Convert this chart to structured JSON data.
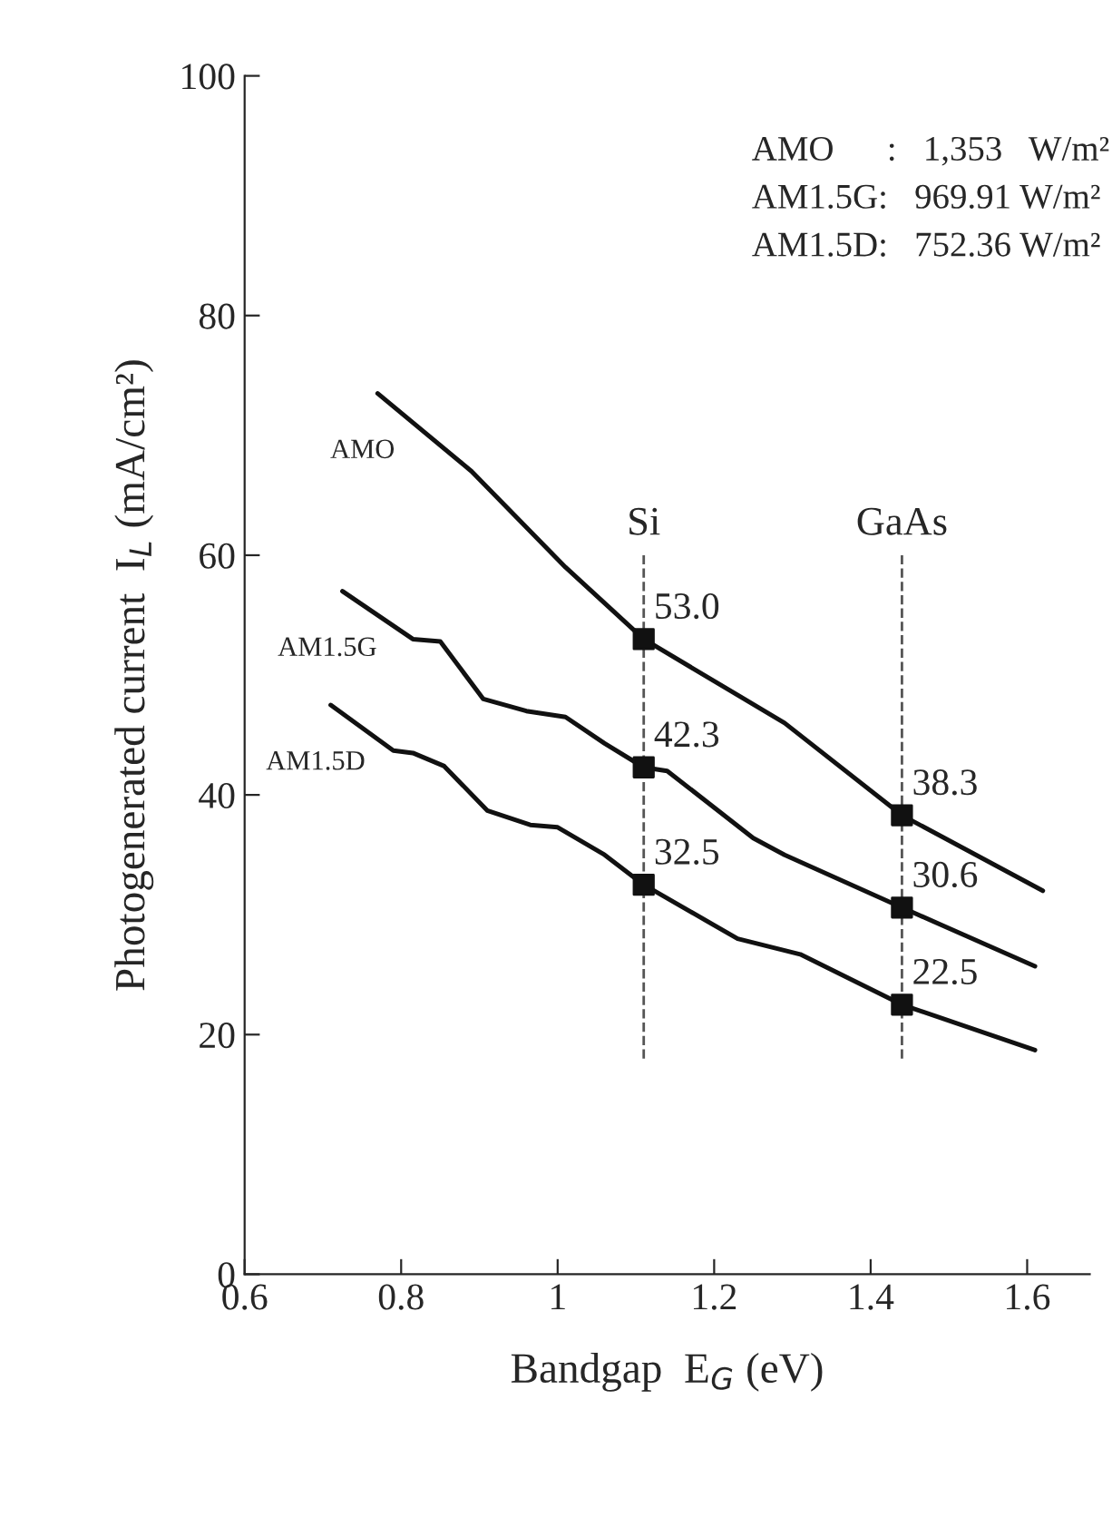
{
  "chart_data": {
    "type": "line",
    "xlabel": "Bandgap  E$_{G}$ (eV)",
    "ylabel": "Photogenerated current  I$_{L}$ (mA/cm²)",
    "xlim": [
      0.6,
      1.68
    ],
    "xticks": [
      0.6,
      0.8,
      1,
      1.2,
      1.4,
      1.6
    ],
    "ylim": [
      0,
      100
    ],
    "yticks": [
      0,
      20,
      40,
      60,
      80,
      100
    ],
    "grid": false,
    "line_style": "solid",
    "series": [
      {
        "name": "AMO",
        "color": "#111111",
        "x": [
          0.77,
          0.89,
          1.01,
          1.11,
          1.29,
          1.44,
          1.62
        ],
        "values": [
          73.5,
          67,
          59,
          53.0,
          46,
          38.3,
          32
        ]
      },
      {
        "name": "AM1.5G",
        "color": "#111111",
        "x": [
          0.725,
          0.815,
          0.85,
          0.905,
          0.96,
          1.01,
          1.06,
          1.11,
          1.14,
          1.25,
          1.29,
          1.44,
          1.61
        ],
        "values": [
          57,
          53,
          52.8,
          48,
          47,
          46.5,
          44.3,
          42.3,
          42,
          36.4,
          35,
          30.6,
          25.7
        ]
      },
      {
        "name": "AM1.5D",
        "color": "#111111",
        "x": [
          0.71,
          0.79,
          0.815,
          0.855,
          0.91,
          0.965,
          1.0,
          1.06,
          1.11,
          1.23,
          1.31,
          1.44,
          1.61
        ],
        "values": [
          47.5,
          43.7,
          43.5,
          42.4,
          38.7,
          37.5,
          37.3,
          35,
          32.5,
          28,
          26.7,
          22.5,
          18.7
        ]
      },
      {
        "type": "scatter",
        "marker": "square",
        "color": "#111111",
        "x": [
          1.11,
          1.11,
          1.11,
          1.44,
          1.44,
          1.44
        ],
        "values": [
          53.0,
          42.3,
          32.5,
          38.3,
          30.6,
          22.5
        ],
        "value_labels": [
          "53.0",
          "42.3",
          "32.5",
          "38.3",
          "30.6",
          "22.5"
        ]
      }
    ],
    "ref_lines": [
      {
        "axis": "x",
        "value": 1.11,
        "label": "Si",
        "line_style": "dashed",
        "color": "#555555"
      },
      {
        "axis": "x",
        "value": 1.44,
        "label": "GaAs",
        "line_style": "dashed",
        "color": "#555555"
      }
    ],
    "annotations": [
      "AMO      :   1,353   W/m²",
      "AM1.5G:   969.91 W/m²",
      "AM1.5D:   752.36 W/m²"
    ]
  }
}
